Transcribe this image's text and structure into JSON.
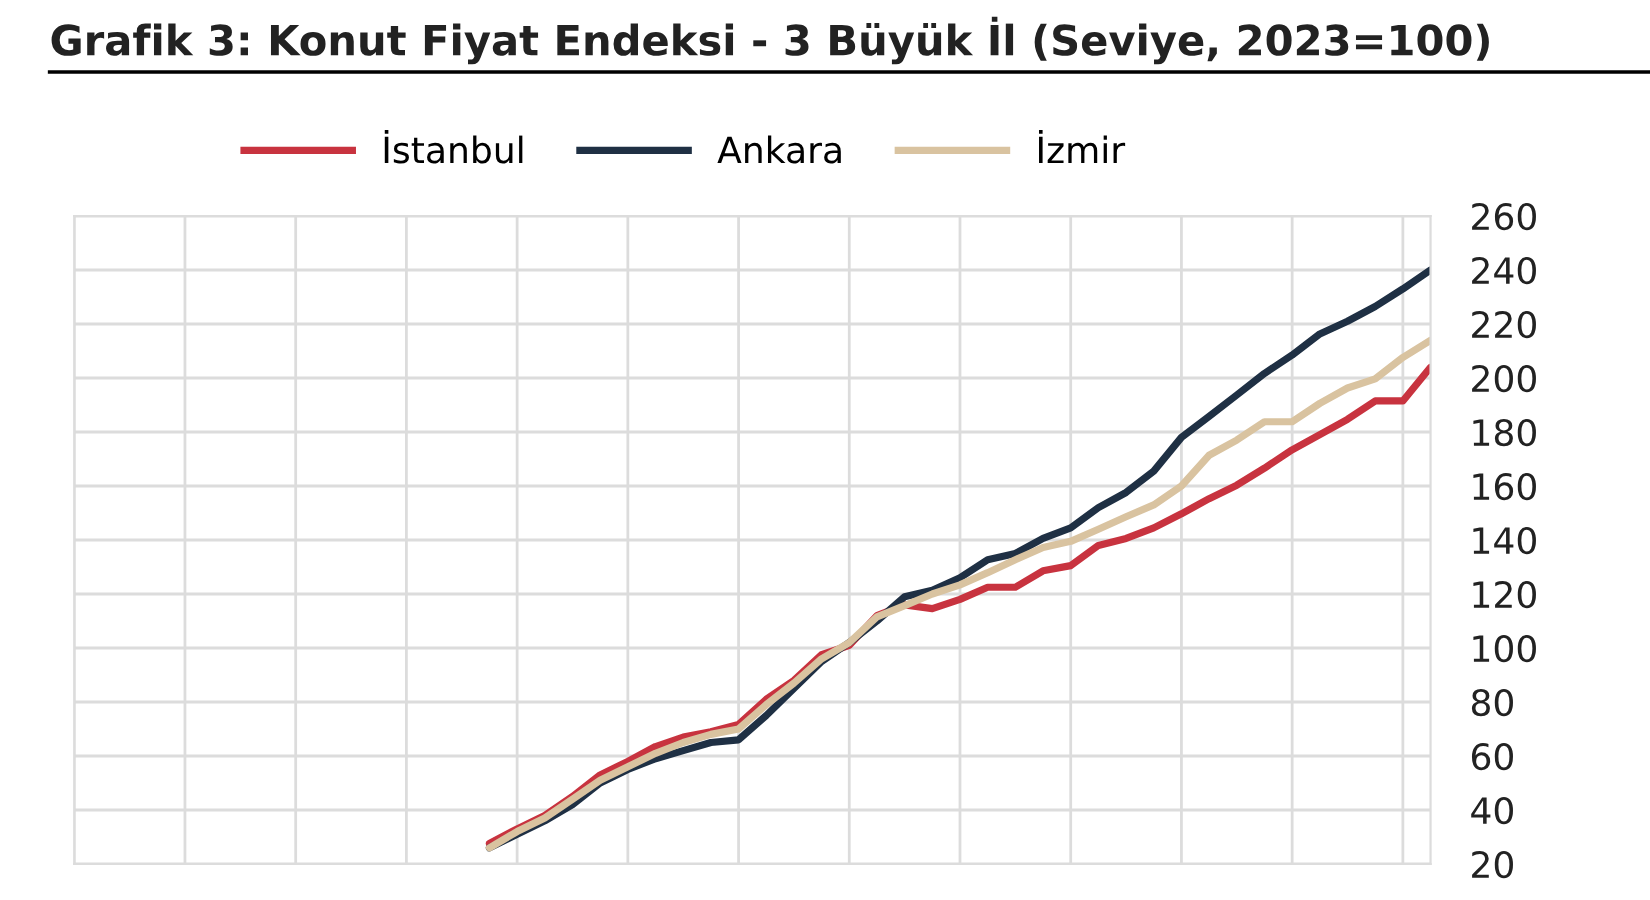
{
  "chart_data": {
    "type": "line",
    "title": "Grafik 3: Konut Fiyat Endeksi - 3 Büyük İl (Seviye, 2023=100)",
    "categories": [
      null,
      null,
      null,
      null,
      null,
      null,
      null,
      null,
      null,
      null,
      null,
      null,
      null,
      null,
      null,
      null,
      null,
      null,
      null,
      null,
      null,
      null,
      null,
      null,
      null,
      null,
      null,
      null,
      null,
      null,
      null,
      null,
      null,
      null,
      null,
      null,
      null,
      null,
      null,
      null,
      null,
      null,
      null,
      null,
      null,
      null,
      null,
      null,
      null,
      null
    ],
    "series": [
      {
        "name": "İstanbul",
        "color": "#c8333f",
        "values": [
          null,
          null,
          null,
          null,
          null,
          null,
          null,
          null,
          null,
          null,
          null,
          null,
          null,
          null,
          null,
          27.6,
          33,
          38,
          45,
          53,
          58,
          63.5,
          67,
          69,
          71.7,
          81,
          88,
          97.5,
          101,
          112,
          116,
          114.6,
          118,
          122.5,
          122.5,
          128.6,
          130.5,
          138,
          140.6,
          144.5,
          149.7,
          155.3,
          160.3,
          166.6,
          173.4,
          179,
          184.7,
          191.5,
          191.5,
          204
        ]
      },
      {
        "name": "Ankara",
        "color": "#1f3044",
        "values": [
          null,
          null,
          null,
          null,
          null,
          null,
          null,
          null,
          null,
          null,
          null,
          null,
          null,
          null,
          null,
          26,
          31,
          36,
          42,
          50,
          55,
          59,
          62,
          65,
          66,
          75,
          85,
          95,
          102,
          110,
          119,
          121.4,
          126,
          132.7,
          135,
          140.6,
          144.5,
          152,
          157.6,
          165.5,
          178,
          185.8,
          193.7,
          201.7,
          208.5,
          216.3,
          221,
          226.5,
          233,
          240
        ]
      },
      {
        "name": "İzmir",
        "color": "#d9c3a0",
        "values": [
          null,
          null,
          null,
          null,
          null,
          null,
          null,
          null,
          null,
          null,
          null,
          null,
          null,
          null,
          null,
          26,
          32,
          37,
          44,
          51,
          56,
          61,
          65,
          68,
          70,
          79,
          87,
          96,
          102,
          111.5,
          115.7,
          120,
          123.4,
          127.9,
          132.7,
          137.2,
          139.5,
          144,
          148.6,
          153,
          160,
          171.4,
          177,
          183.8,
          183.8,
          190.6,
          196.3,
          199.7,
          207.6,
          214
        ]
      }
    ],
    "ylim": [
      20,
      260
    ],
    "yticks": [
      20,
      40,
      60,
      80,
      100,
      120,
      140,
      160,
      180,
      200,
      220,
      240,
      260
    ],
    "grid": true,
    "legend": "top",
    "line_style": "solid",
    "tick_labels": "y"
  }
}
